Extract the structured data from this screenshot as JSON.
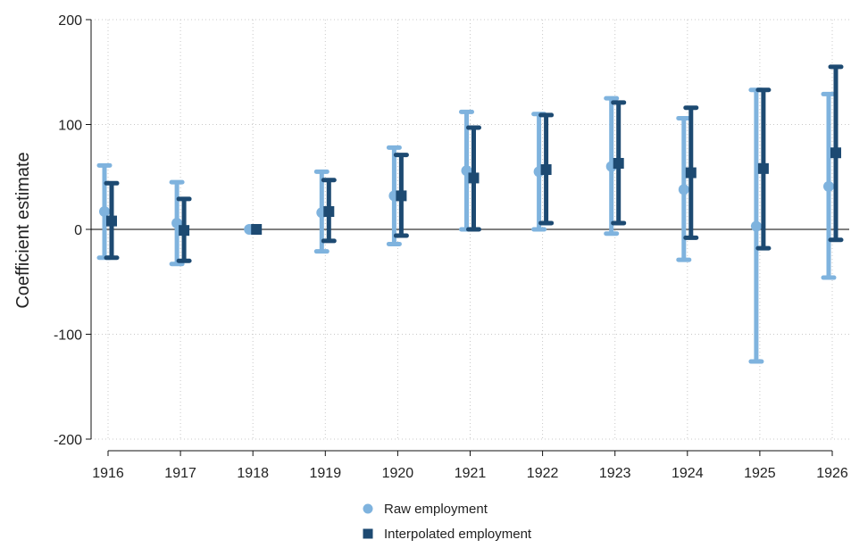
{
  "chart_data": {
    "type": "scatter",
    "title": "",
    "xlabel": "",
    "ylabel": "Coefficient estimate",
    "x": [
      "1916",
      "1917",
      "1918",
      "1919",
      "1920",
      "1921",
      "1922",
      "1923",
      "1924",
      "1925",
      "1926"
    ],
    "ylim": [
      -200,
      200
    ],
    "yticks": [
      "200",
      "100",
      "0",
      "-100",
      "-200"
    ],
    "grid": true,
    "reference_line_y": 0,
    "legend_position": "bottom",
    "series": [
      {
        "name": "Raw employment",
        "marker": "circle",
        "color": "#7fb3de",
        "estimates": [
          17,
          6,
          0,
          16,
          32,
          56,
          55,
          60,
          38,
          3,
          41
        ],
        "lower": [
          -27,
          -33,
          0,
          -21,
          -14,
          0,
          0,
          -4,
          -29,
          -126,
          -46
        ],
        "upper": [
          61,
          45,
          0,
          55,
          78,
          112,
          110,
          125,
          106,
          133,
          129
        ]
      },
      {
        "name": "Interpolated employment",
        "marker": "square",
        "color": "#1d4a72",
        "estimates": [
          8,
          -1,
          0,
          17,
          32,
          49,
          57,
          63,
          54,
          58,
          73
        ],
        "lower": [
          -27,
          -30,
          0,
          -11,
          -6,
          0,
          6,
          6,
          -8,
          -18,
          -10
        ],
        "upper": [
          44,
          29,
          0,
          47,
          71,
          97,
          109,
          121,
          116,
          133,
          155
        ]
      }
    ]
  }
}
